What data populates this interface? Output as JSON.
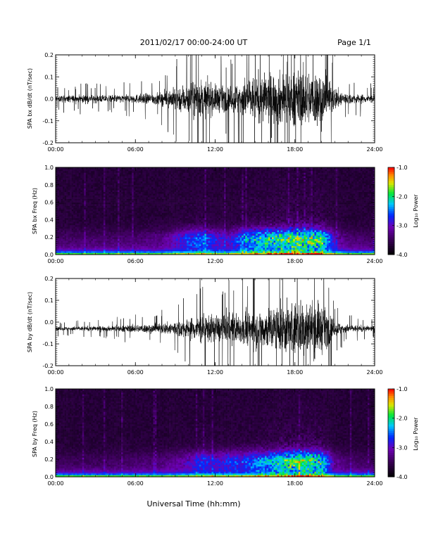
{
  "header": {
    "title": "2011/02/17  00:00-24:00 UT",
    "page": "Page 1/1"
  },
  "xlabel": "Universal Time (hh:mm)",
  "chart_data": [
    {
      "type": "line",
      "ylabel": "SPA bx dB/dt (nT/sec)",
      "xlim": [
        0,
        24
      ],
      "ylim": [
        -0.2,
        0.2
      ],
      "xticks": [
        "00:00",
        "06:00",
        "12:00",
        "18:00",
        "24:00"
      ],
      "yticks": [
        "-0.2",
        "-0.1",
        "0.0",
        "0.1",
        "0.2"
      ],
      "amplitude_envelope": {
        "hours": [
          0,
          2,
          4,
          6,
          8,
          9,
          10,
          11,
          12,
          13,
          14,
          15,
          16,
          17,
          18,
          19,
          20,
          21,
          22,
          23,
          24
        ],
        "amp": [
          0.025,
          0.03,
          0.028,
          0.035,
          0.05,
          0.09,
          0.13,
          0.15,
          0.11,
          0.09,
          0.15,
          0.18,
          0.2,
          0.21,
          0.22,
          0.22,
          0.22,
          0.09,
          0.04,
          0.035,
          0.03
        ]
      },
      "baseline": 0.0
    },
    {
      "type": "heatmap",
      "ylabel": "SPA bx Freq (Hz)",
      "xlim": [
        0,
        24
      ],
      "ylim": [
        0,
        1.0
      ],
      "xticks": [
        "00:00",
        "06:00",
        "12:00",
        "18:00",
        "24:00"
      ],
      "yticks": [
        "0.0",
        "0.2",
        "0.4",
        "0.6",
        "0.8",
        "1.0"
      ],
      "colorbar": {
        "label": "Log₁₀ Power",
        "ticks": [
          "-1.0",
          "-2.0",
          "-3.0",
          "-4.0"
        ],
        "range": [
          -4.0,
          -1.0
        ]
      }
    },
    {
      "type": "line",
      "ylabel": "SPA by dB/dt (nT/sec)",
      "xlim": [
        0,
        24
      ],
      "ylim": [
        -0.2,
        0.2
      ],
      "xticks": [
        "00:00",
        "06:00",
        "12:00",
        "18:00",
        "24:00"
      ],
      "yticks": [
        "-0.2",
        "-0.1",
        "0.0",
        "0.1",
        "0.2"
      ],
      "amplitude_envelope": {
        "hours": [
          0,
          2,
          4,
          6,
          8,
          9,
          10,
          11,
          12,
          13,
          14,
          15,
          16,
          17,
          18,
          19,
          20,
          21,
          22,
          23,
          24
        ],
        "amp": [
          0.015,
          0.018,
          0.02,
          0.03,
          0.04,
          0.06,
          0.08,
          0.12,
          0.1,
          0.12,
          0.12,
          0.15,
          0.17,
          0.2,
          0.22,
          0.22,
          0.2,
          0.06,
          0.03,
          0.025,
          0.02
        ]
      },
      "baseline": -0.03
    },
    {
      "type": "heatmap",
      "ylabel": "SPA by Freq (Hz)",
      "xlim": [
        0,
        24
      ],
      "ylim": [
        0,
        1.0
      ],
      "xticks": [
        "00:00",
        "06:00",
        "12:00",
        "18:00",
        "24:00"
      ],
      "yticks": [
        "0.0",
        "0.2",
        "0.4",
        "0.6",
        "0.8",
        "1.0"
      ],
      "colorbar": {
        "label": "Log₁₀ Power",
        "ticks": [
          "-1.0",
          "-2.0",
          "-3.0",
          "-4.0"
        ],
        "range": [
          -4.0,
          -1.0
        ]
      }
    }
  ]
}
